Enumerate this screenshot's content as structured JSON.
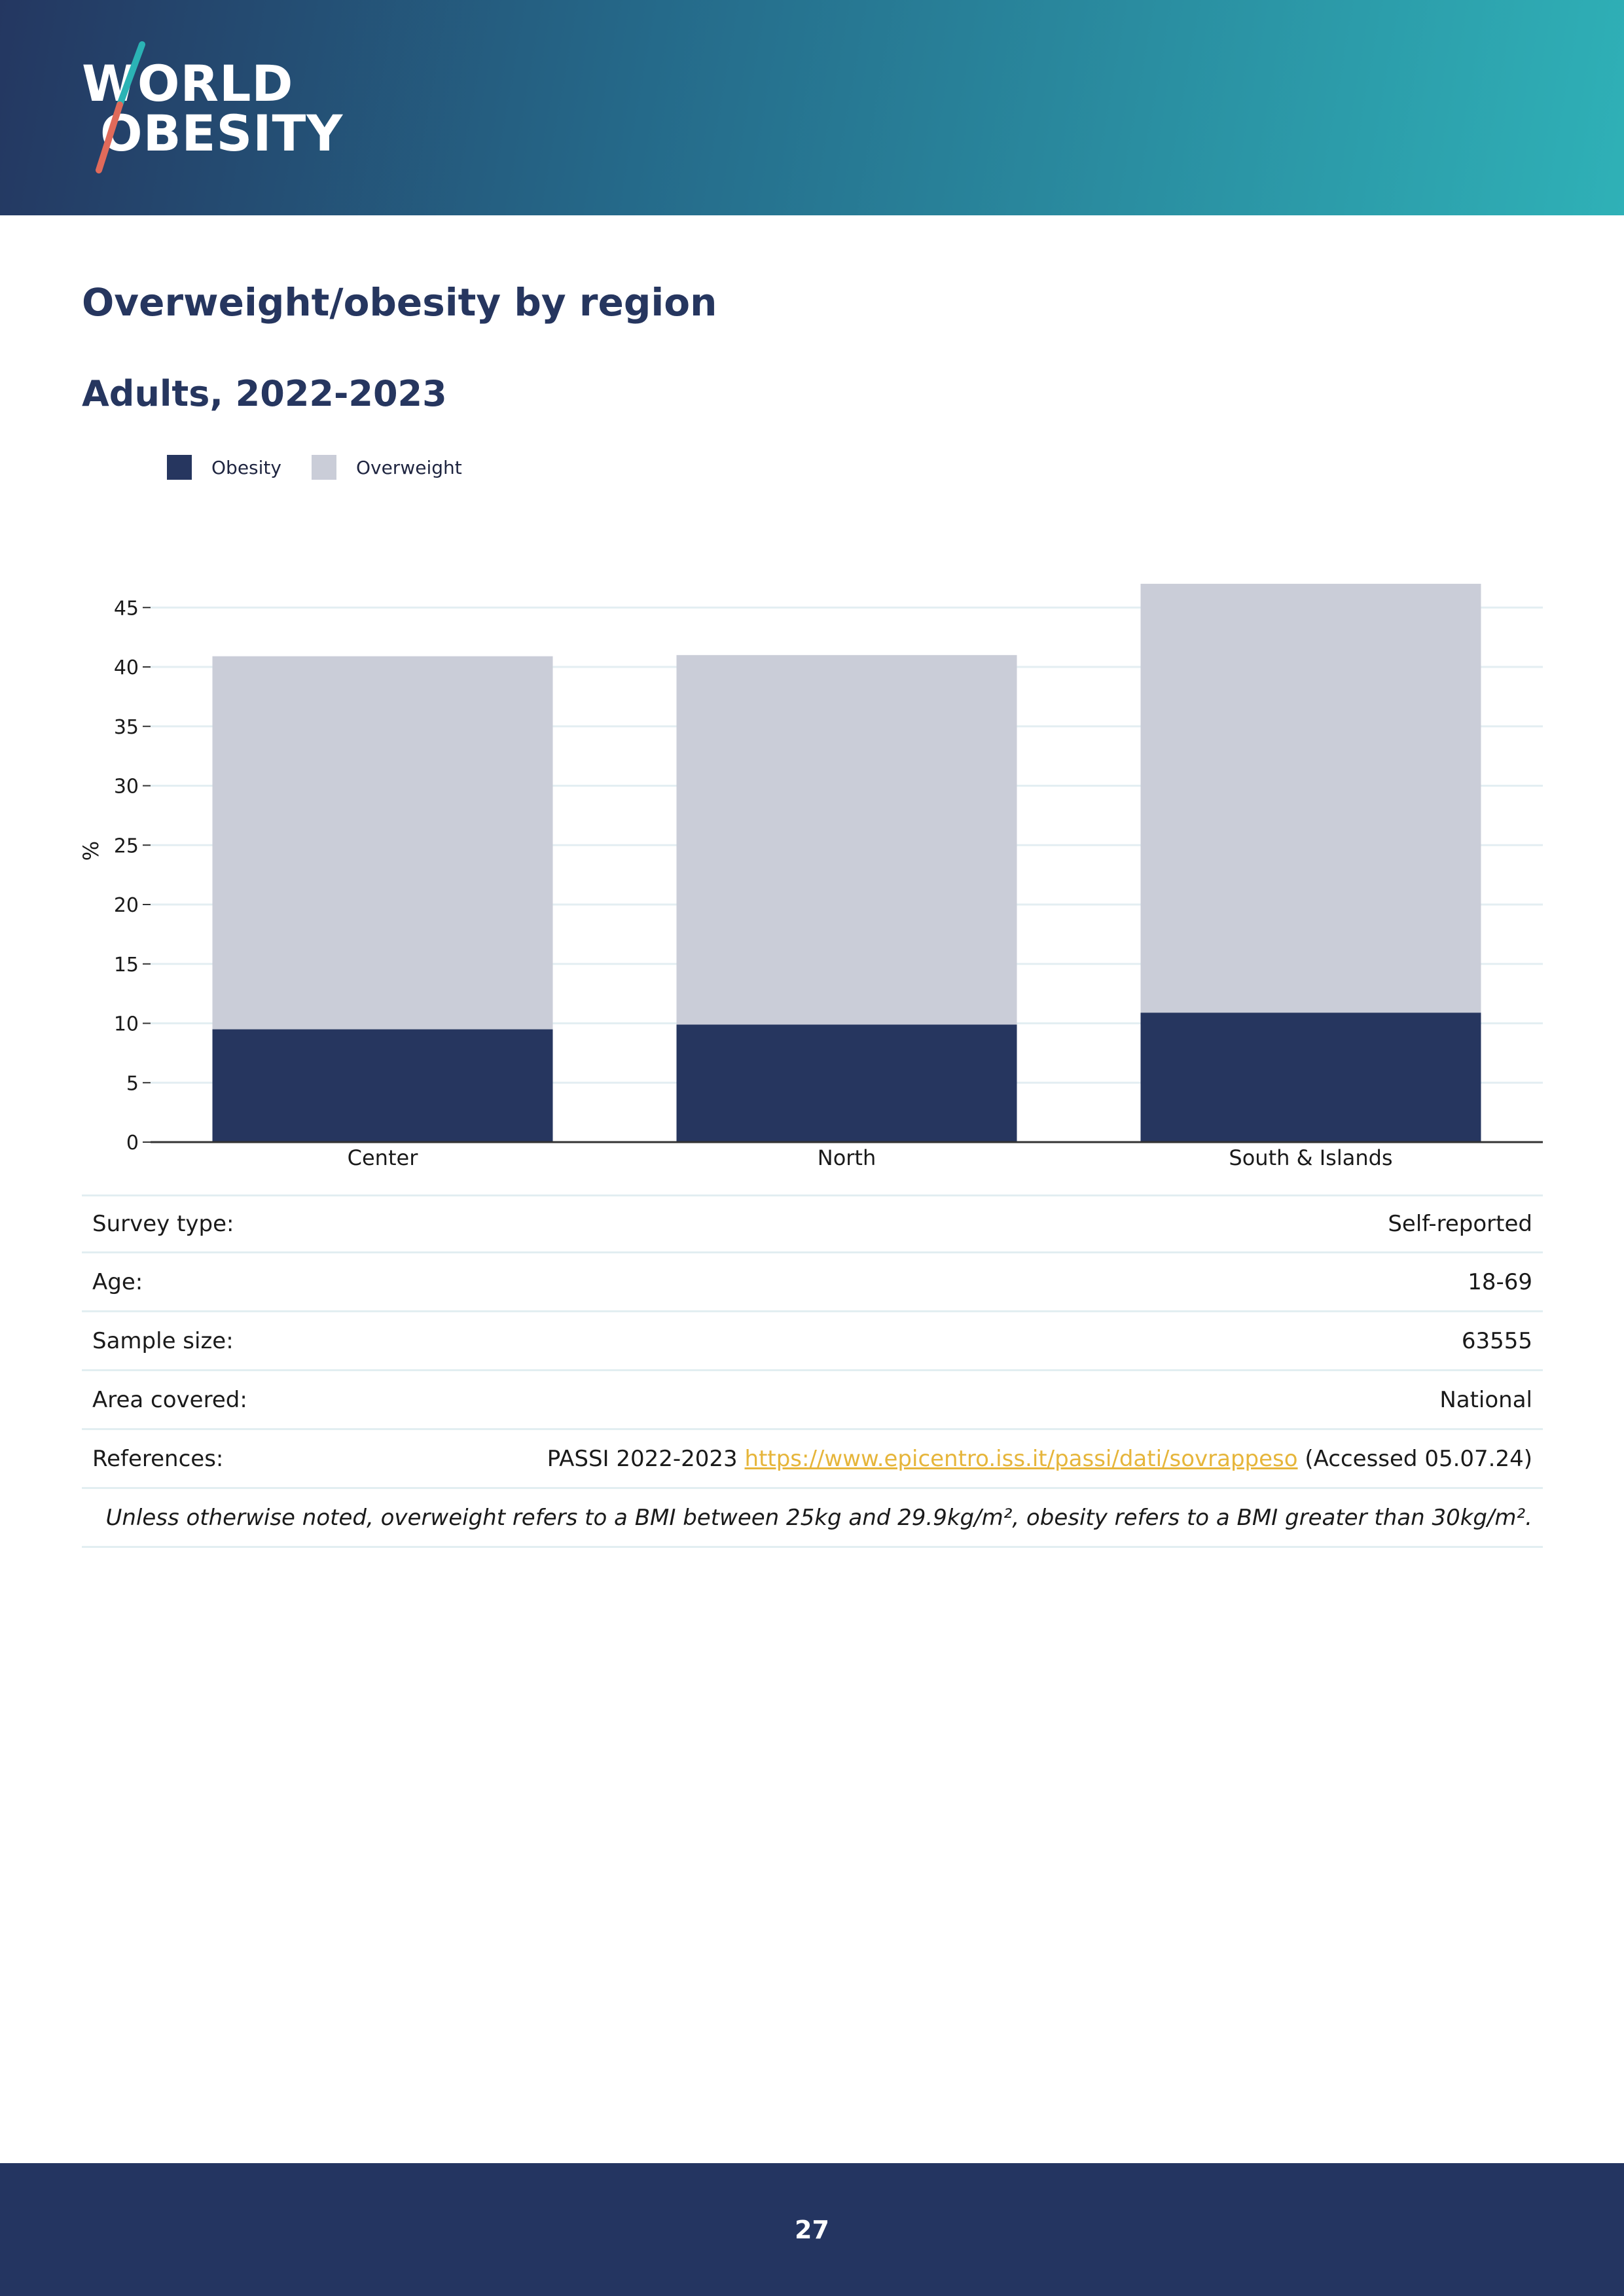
{
  "header": {
    "logo_line1": "WORLD",
    "logo_line2": "OBESITY"
  },
  "page": {
    "title": "Overweight/obesity by region",
    "subtitle": "Adults, 2022-2023",
    "page_number": "27"
  },
  "colors": {
    "obesity": "#26365f",
    "overweight": "#cacdd8",
    "gridline": "#e3eef2",
    "axis": "#333333",
    "link": "#e6b53a"
  },
  "chart_data": {
    "type": "bar",
    "stacked": true,
    "categories": [
      "Center",
      "North",
      "South & Islands"
    ],
    "series": [
      {
        "name": "Obesity",
        "values": [
          9.5,
          9.9,
          10.9
        ]
      },
      {
        "name": "Overweight",
        "values": [
          31.4,
          31.1,
          36.1
        ]
      }
    ],
    "ylabel": "%",
    "xlabel": "",
    "ylim": [
      0,
      48
    ],
    "yticks": [
      0,
      5,
      10,
      15,
      20,
      25,
      30,
      35,
      40,
      45
    ],
    "grid": true,
    "legend": "top-left"
  },
  "table": {
    "survey_type_label": "Survey type:",
    "survey_type_value": "Self-reported",
    "age_label": "Age:",
    "age_value": "18-69",
    "sample_size_label": "Sample size:",
    "sample_size_value": "63555",
    "area_label": "Area covered:",
    "area_value": "National",
    "references_label": "References:",
    "references_prefix": "PASSI 2022-2023",
    "references_link": "https://www.epicentro.iss.it/passi/dati/sovrappeso",
    "references_suffix": "(Accessed 05.07.24)",
    "note": "Unless otherwise noted, overweight refers to a BMI between 25kg and 29.9kg/m², obesity refers to a BMI greater than 30kg/m²."
  }
}
